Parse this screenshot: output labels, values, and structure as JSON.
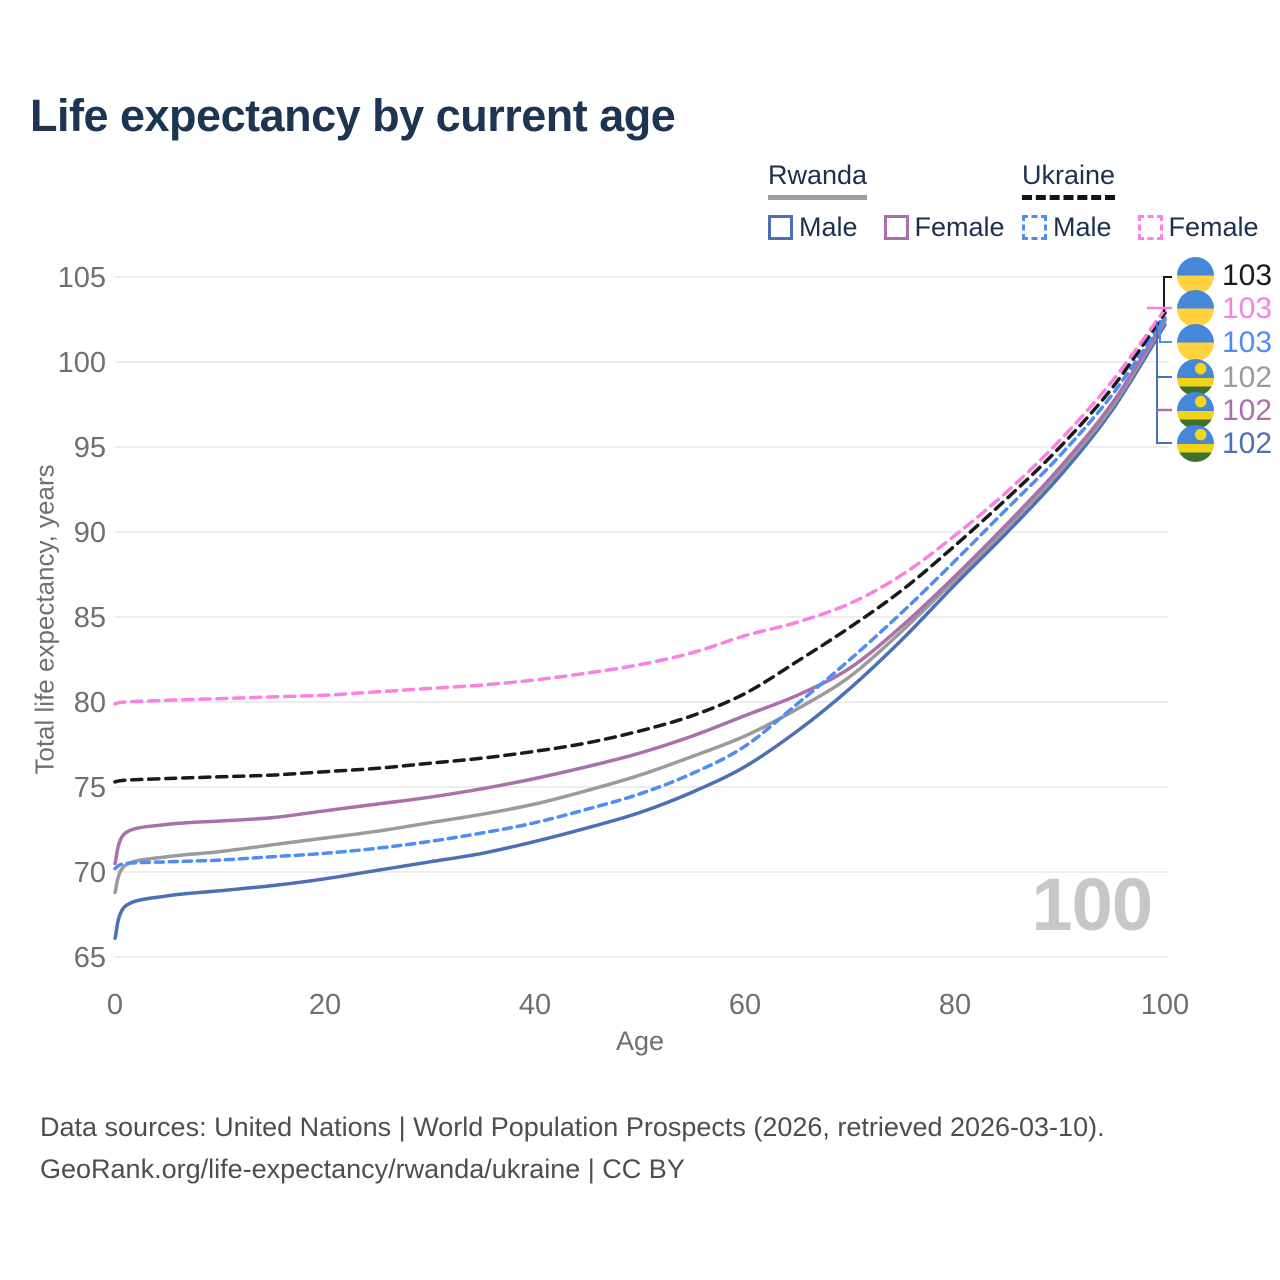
{
  "title": "Life expectancy by current age",
  "legend": {
    "groups": [
      {
        "name": "Rwanda",
        "line_style": "solid",
        "underline_color": "#9e9e9e",
        "items": [
          {
            "label": "Male",
            "color": "#4a71b6"
          },
          {
            "label": "Female",
            "color": "#ab6fab"
          }
        ]
      },
      {
        "name": "Ukraine",
        "line_style": "dashed",
        "underline_color": "#141414",
        "items": [
          {
            "label": "Male",
            "color": "#4f8df4"
          },
          {
            "label": "Female",
            "color": "#fc80e2"
          }
        ]
      }
    ]
  },
  "watermark": "100",
  "footer": {
    "line1": "Data sources: United Nations | World Population Prospects (2026, retrieved 2026-03-10).",
    "line2": "GeoRank.org/life-expectancy/rwanda/ukraine | CC BY"
  },
  "chart_data": {
    "type": "line",
    "title": "Life expectancy by current age",
    "xlabel": "Age",
    "ylabel": "Total life expectancy, years",
    "xlim": [
      0,
      100
    ],
    "ylim": [
      65,
      105
    ],
    "x_ticks": [
      0,
      20,
      40,
      60,
      80,
      100
    ],
    "y_ticks": [
      65,
      70,
      75,
      80,
      85,
      90,
      95,
      100,
      105
    ],
    "grid": "horizontal",
    "legend_position": "top-right",
    "ages": [
      0,
      1,
      5,
      10,
      15,
      20,
      25,
      30,
      35,
      40,
      45,
      50,
      55,
      60,
      65,
      70,
      75,
      80,
      85,
      90,
      95,
      100
    ],
    "series": [
      {
        "name": "Rwanda Male",
        "country": "Rwanda",
        "sex": "Male",
        "color": "#4a71b6",
        "dash": "solid",
        "values": [
          66.1,
          68.0,
          68.6,
          68.9,
          69.2,
          69.6,
          70.1,
          70.6,
          71.1,
          71.8,
          72.6,
          73.5,
          74.7,
          76.2,
          78.3,
          80.8,
          83.7,
          86.9,
          90.0,
          93.3,
          97.2,
          102.2
        ]
      },
      {
        "name": "Rwanda Both sexes",
        "country": "Rwanda",
        "sex": "All",
        "color": "#9b9b9b",
        "dash": "solid",
        "values": [
          68.8,
          70.4,
          70.9,
          71.2,
          71.6,
          72.0,
          72.4,
          72.9,
          73.4,
          74.0,
          74.8,
          75.7,
          76.8,
          78.0,
          79.6,
          81.5,
          84.2,
          87.2,
          90.3,
          93.6,
          97.4,
          102.4
        ]
      },
      {
        "name": "Rwanda Female",
        "country": "Rwanda",
        "sex": "Female",
        "color": "#ab6fab",
        "dash": "solid",
        "values": [
          70.5,
          72.3,
          72.8,
          73.0,
          73.2,
          73.6,
          74.0,
          74.4,
          74.9,
          75.5,
          76.2,
          77.0,
          78.0,
          79.2,
          80.4,
          82.0,
          84.5,
          87.4,
          90.5,
          93.8,
          97.6,
          102.5
        ]
      },
      {
        "name": "Ukraine Male",
        "country": "Ukraine",
        "sex": "Male",
        "color": "#4f8df4",
        "dash": "8 6",
        "values": [
          70.2,
          70.5,
          70.6,
          70.7,
          70.9,
          71.1,
          71.4,
          71.8,
          72.3,
          72.9,
          73.7,
          74.6,
          75.8,
          77.4,
          79.9,
          82.5,
          85.3,
          88.3,
          91.4,
          94.5,
          98.1,
          102.6
        ]
      },
      {
        "name": "Ukraine Both sexes",
        "country": "Ukraine",
        "sex": "All",
        "color": "#1a1a1a",
        "dash": "10 7",
        "values": [
          75.3,
          75.4,
          75.5,
          75.6,
          75.7,
          75.9,
          76.1,
          76.4,
          76.7,
          77.1,
          77.6,
          78.3,
          79.2,
          80.5,
          82.4,
          84.4,
          86.6,
          89.2,
          92.0,
          95.0,
          98.5,
          102.9
        ]
      },
      {
        "name": "Ukraine Female",
        "country": "Ukraine",
        "sex": "Female",
        "color": "#fc80e2",
        "dash": "10 7",
        "values": [
          79.9,
          80.0,
          80.1,
          80.2,
          80.3,
          80.4,
          80.6,
          80.8,
          81.0,
          81.3,
          81.7,
          82.2,
          82.9,
          83.9,
          84.7,
          85.8,
          87.5,
          89.8,
          92.4,
          95.4,
          98.9,
          103.1
        ]
      }
    ],
    "end_labels": [
      {
        "value": "103",
        "color": "#1a1a1a",
        "flag": "ukraine",
        "series": "Ukraine Both sexes"
      },
      {
        "value": "103",
        "color": "#fc80e2",
        "flag": "ukraine",
        "series": "Ukraine Female"
      },
      {
        "value": "103",
        "color": "#4f8df4",
        "flag": "ukraine",
        "series": "Ukraine Male"
      },
      {
        "value": "102",
        "color": "#9b9b9b",
        "flag": "rwanda",
        "series": "Rwanda Both sexes"
      },
      {
        "value": "102",
        "color": "#ab6fab",
        "flag": "rwanda",
        "series": "Rwanda Female"
      },
      {
        "value": "102",
        "color": "#4a71b6",
        "flag": "rwanda",
        "series": "Rwanda Male"
      }
    ]
  }
}
